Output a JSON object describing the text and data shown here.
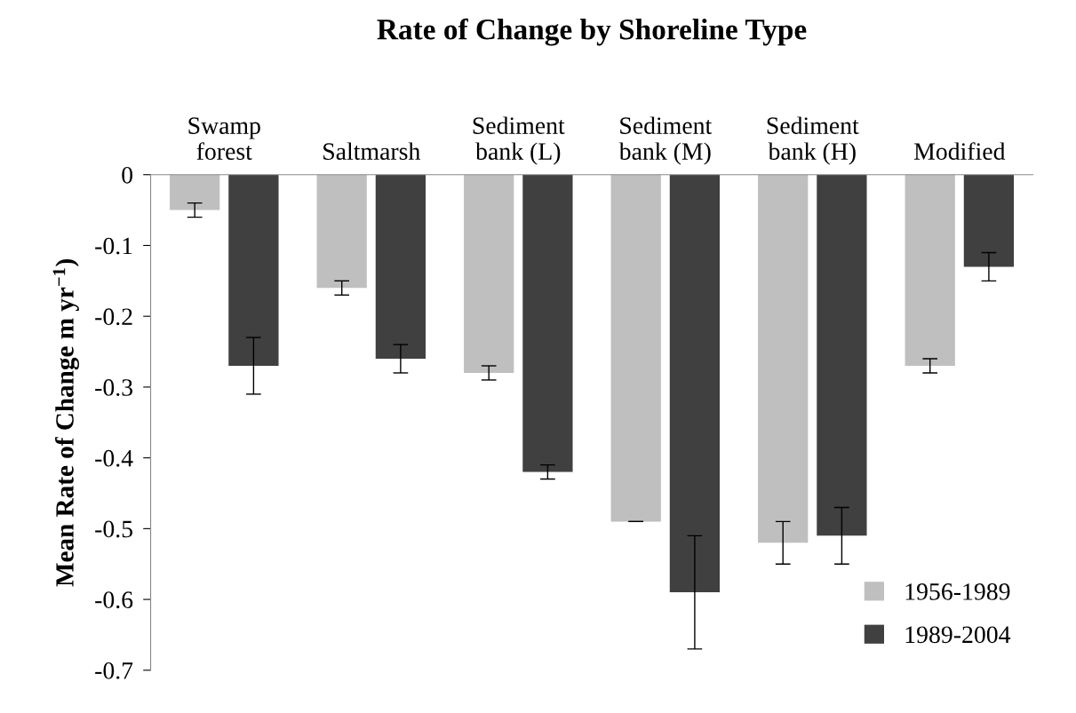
{
  "chart_data": {
    "type": "bar",
    "title": "Rate of Change by Shoreline Type",
    "ylabel": "Mean Rate of Change m yr$^{−1}$)",
    "categories": [
      "Swamp\nforest",
      "Saltmarsh",
      "Sediment\nbank (L)",
      "Sediment\nbank (M)",
      "Sediment\nbank (H)",
      "Modified"
    ],
    "series": [
      {
        "name": "1956-1989",
        "color": "#bfbfbf",
        "values": [
          -0.05,
          -0.16,
          -0.28,
          -0.49,
          -0.52,
          -0.27
        ],
        "errors": [
          0.01,
          0.01,
          0.01,
          0,
          0.03,
          0.01
        ]
      },
      {
        "name": "1989-2004",
        "color": "#404040",
        "values": [
          -0.27,
          -0.26,
          -0.42,
          -0.59,
          -0.51,
          -0.13
        ],
        "errors": [
          0.04,
          0.02,
          0.01,
          0.08,
          0.04,
          0.02
        ]
      }
    ],
    "ylim": [
      -0.7,
      0
    ],
    "yticks": [
      0,
      {
        "value": -0.1,
        "label": "-0.1"
      },
      {
        "value": -0.2,
        "label": "-0.2"
      },
      {
        "value": -0.3,
        "label": "-0.3"
      },
      {
        "value": -0.4,
        "label": "-0.4"
      },
      {
        "value": -0.5,
        "label": "-0.5"
      },
      {
        "value": -0.6,
        "label": "-0.6"
      },
      {
        "value": -0.7,
        "label": "-0.7"
      }
    ],
    "grid": false,
    "legend": "bottom right"
  }
}
